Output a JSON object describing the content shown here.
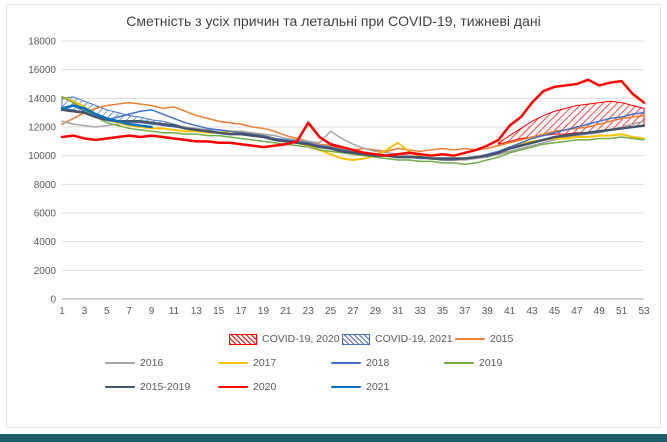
{
  "title": "Сметність з усіх причин  та летальні при COVID-19, тижневі дані",
  "chart_data": {
    "type": "line",
    "title": "Сметність з усіх причин  та летальні при COVID-19, тижневі дані",
    "xlabel": "",
    "ylabel": "",
    "xlim": [
      1,
      53
    ],
    "ylim": [
      0,
      18000
    ],
    "ytick_step": 2000,
    "yticks": [
      0,
      2000,
      4000,
      6000,
      8000,
      10000,
      12000,
      14000,
      16000,
      18000
    ],
    "xticks": [
      1,
      3,
      5,
      7,
      9,
      11,
      13,
      15,
      17,
      19,
      21,
      23,
      25,
      27,
      29,
      31,
      33,
      35,
      37,
      39,
      41,
      43,
      45,
      47,
      49,
      51,
      53
    ],
    "grid": true,
    "legend_position": "bottom",
    "bands": [
      {
        "name": "COVID-19, 2020",
        "color": "#FF0000",
        "start_week": 40,
        "lower": [
          10800,
          11000,
          11200,
          11300,
          11400,
          11500,
          11500,
          11600,
          11600,
          11700,
          11800,
          11900,
          12000,
          12100
        ],
        "upper": [
          10900,
          11400,
          11900,
          12400,
          12800,
          13100,
          13300,
          13500,
          13600,
          13700,
          13800,
          13700,
          13500,
          13300
        ]
      },
      {
        "name": "COVID-19, 2021",
        "color": "#4472C4",
        "start_week": 1,
        "lower": [
          13300,
          13200,
          13000,
          12700,
          12500,
          12400,
          12300,
          12300,
          12200,
          12100,
          12000,
          11900,
          11800
        ],
        "upper": [
          14000,
          14100,
          13800,
          13500,
          13200,
          13000,
          12800,
          12700,
          12500,
          12400,
          12200,
          12000,
          11850
        ]
      }
    ],
    "series": [
      {
        "name": "2015",
        "color": "#ED7D31",
        "width": 1.5,
        "start_week": 1,
        "values": [
          12200,
          12600,
          13000,
          13300,
          13500,
          13600,
          13700,
          13600,
          13500,
          13300,
          13400,
          13100,
          12800,
          12600,
          12400,
          12300,
          12200,
          12000,
          11900,
          11700,
          11400,
          11200,
          11000,
          10800,
          10700,
          10500,
          10400,
          10500,
          10400,
          10300,
          10500,
          10400,
          10300,
          10400,
          10500,
          10400,
          10500,
          10400,
          10500,
          10700,
          10900,
          11100,
          11300,
          11500,
          11700,
          11800,
          11900,
          12000,
          12200,
          12400,
          12600,
          12700,
          12800
        ]
      },
      {
        "name": "2016",
        "color": "#A5A5A5",
        "width": 1.5,
        "start_week": 1,
        "values": [
          12400,
          12200,
          12100,
          12000,
          12100,
          12200,
          12300,
          12400,
          12300,
          12200,
          12100,
          12000,
          11900,
          11800,
          11800,
          11700,
          11700,
          11600,
          11500,
          11400,
          11200,
          11100,
          11000,
          10900,
          11700,
          11200,
          10800,
          10500,
          10300,
          10200,
          10100,
          10000,
          9900,
          9800,
          9800,
          9700,
          9700,
          9800,
          9900,
          10100,
          10300,
          10500,
          10700,
          10900,
          11100,
          11300,
          11400,
          11500,
          11600,
          11800,
          12000,
          12200,
          12400
        ]
      },
      {
        "name": "2017",
        "color": "#FFC000",
        "width": 2,
        "start_week": 1,
        "values": [
          14100,
          13800,
          13400,
          12900,
          12500,
          12300,
          12100,
          12000,
          11900,
          11900,
          11800,
          11700,
          11700,
          11600,
          11600,
          11700,
          11600,
          11500,
          11400,
          11200,
          11000,
          10900,
          10700,
          10400,
          10100,
          9800,
          9700,
          9800,
          10000,
          10400,
          10900,
          10300,
          9900,
          9800,
          9700,
          9700,
          9800,
          9900,
          10000,
          10200,
          10500,
          10800,
          11000,
          11100,
          11200,
          11200,
          11300,
          11300,
          11400,
          11400,
          11500,
          11300,
          11200
        ]
      },
      {
        "name": "2018",
        "color": "#4472C4",
        "width": 1.5,
        "start_week": 1,
        "values": [
          13200,
          13500,
          13100,
          12700,
          12500,
          12700,
          12900,
          13100,
          13200,
          12900,
          12600,
          12300,
          12100,
          11900,
          11800,
          11700,
          11600,
          11500,
          11400,
          11200,
          11100,
          11000,
          10900,
          10700,
          10600,
          10400,
          10300,
          10200,
          10100,
          10000,
          9900,
          9900,
          9800,
          9800,
          9700,
          9700,
          9800,
          9900,
          10100,
          10300,
          10600,
          10900,
          11200,
          11400,
          11600,
          11800,
          12000,
          12200,
          12400,
          12600,
          12700,
          12900,
          13000
        ]
      },
      {
        "name": "2019",
        "color": "#70AD47",
        "width": 1.5,
        "start_week": 1,
        "values": [
          14100,
          13700,
          13200,
          12700,
          12300,
          12100,
          11900,
          11800,
          11700,
          11600,
          11600,
          11500,
          11500,
          11400,
          11400,
          11300,
          11200,
          11100,
          11000,
          10900,
          10800,
          10700,
          10600,
          10400,
          10300,
          10200,
          10100,
          10000,
          9900,
          9800,
          9700,
          9700,
          9600,
          9600,
          9500,
          9500,
          9400,
          9500,
          9700,
          9900,
          10200,
          10400,
          10600,
          10800,
          10900,
          11000,
          11100,
          11100,
          11200,
          11200,
          11300,
          11200,
          11100
        ]
      },
      {
        "name": "2015-2019",
        "color": "#44546A",
        "width": 2.5,
        "start_week": 1,
        "values": [
          13200,
          13100,
          13000,
          12700,
          12500,
          12400,
          12400,
          12400,
          12300,
          12200,
          12100,
          11900,
          11800,
          11700,
          11600,
          11500,
          11500,
          11400,
          11300,
          11100,
          11000,
          10900,
          10800,
          10600,
          10500,
          10300,
          10200,
          10100,
          10000,
          10000,
          9900,
          9900,
          9900,
          9800,
          9800,
          9800,
          9800,
          9900,
          10000,
          10200,
          10500,
          10700,
          10900,
          11100,
          11300,
          11400,
          11500,
          11600,
          11700,
          11800,
          11900,
          12000,
          12100
        ]
      },
      {
        "name": "2020",
        "color": "#FF0000",
        "width": 2.5,
        "start_week": 1,
        "values": [
          11300,
          11400,
          11200,
          11100,
          11200,
          11300,
          11400,
          11300,
          11400,
          11300,
          11200,
          11100,
          11000,
          11000,
          10900,
          10900,
          10800,
          10700,
          10600,
          10700,
          10800,
          11000,
          12300,
          11300,
          10800,
          10600,
          10400,
          10200,
          10100,
          10000,
          10100,
          10200,
          10100,
          10000,
          10100,
          10000,
          10200,
          10400,
          10700,
          11100,
          12100,
          12700,
          13700,
          14500,
          14800,
          14900,
          15000,
          15300,
          14900,
          15100,
          15200,
          14300,
          13700
        ]
      },
      {
        "name": "2021",
        "color": "#0070C0",
        "width": 2.5,
        "start_week": 1,
        "values": [
          13300,
          13500,
          13300,
          12900,
          12600,
          12400,
          12200,
          12100,
          12000
        ]
      }
    ],
    "legend_rows": [
      [
        {
          "label": "COVID-19, 2020",
          "swatch": "hatch",
          "color": "#FF0000"
        },
        {
          "label": "COVID-19, 2021",
          "swatch": "hatch",
          "color": "#4472C4"
        },
        {
          "label": "2015",
          "swatch": "line",
          "color": "#ED7D31",
          "width": 1.5
        }
      ],
      [
        {
          "label": "2016",
          "swatch": "line",
          "color": "#A5A5A5",
          "width": 1.5
        },
        {
          "label": "2017",
          "swatch": "line",
          "color": "#FFC000",
          "width": 2
        },
        {
          "label": "2018",
          "swatch": "line",
          "color": "#4472C4",
          "width": 1.5
        },
        {
          "label": "2019",
          "swatch": "line",
          "color": "#70AD47",
          "width": 1.5
        }
      ],
      [
        {
          "label": "2015-2019",
          "swatch": "line",
          "color": "#44546A",
          "width": 2.5
        },
        {
          "label": "2020",
          "swatch": "line",
          "color": "#FF0000",
          "width": 2.5
        },
        {
          "label": "2021",
          "swatch": "line",
          "color": "#0070C0",
          "width": 2.5
        }
      ]
    ]
  }
}
